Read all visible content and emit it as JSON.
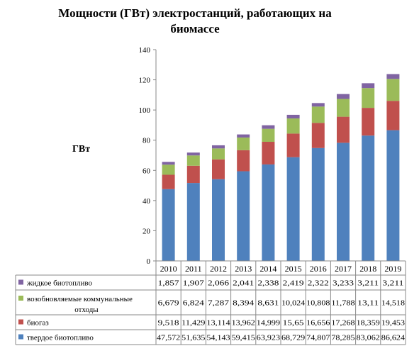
{
  "chart_data": {
    "type": "bar",
    "stacked": true,
    "title": "Мощности (ГВт) электростанций, работающих на биомассе",
    "ylabel": "ГВт",
    "xlabel": "",
    "ylim": [
      0,
      140
    ],
    "yticks": [
      "0",
      "20",
      "40",
      "60",
      "80",
      "100",
      "120",
      "140"
    ],
    "grid": false,
    "legend": "table-left",
    "categories": [
      "2010",
      "2011",
      "2012",
      "2013",
      "2014",
      "2015",
      "2016",
      "2017",
      "2018",
      "2019"
    ],
    "series": [
      {
        "name": "твердое биотопливо",
        "color": "#4F81BD",
        "values": [
          47.572,
          51.635,
          54.143,
          59.415,
          63.923,
          68.729,
          74.807,
          78.285,
          83.062,
          86.624
        ],
        "labels": [
          "47,572",
          "51,635",
          "54,143",
          "59,415",
          "63,923",
          "68,729",
          "74,807",
          "78,285",
          "83,062",
          "86,624"
        ]
      },
      {
        "name": "биогаз",
        "color": "#C0504D",
        "values": [
          9.518,
          11.429,
          13.114,
          13.962,
          14.999,
          15.65,
          16.656,
          17.268,
          18.359,
          19.453
        ],
        "labels": [
          "9,518",
          "11,429",
          "13,114",
          "13,962",
          "14,999",
          "15,65",
          "16,656",
          "17,268",
          "18,359",
          "19,453"
        ]
      },
      {
        "name": "возобновляемые коммунальные отходы",
        "color": "#9BBB59",
        "values": [
          6.679,
          6.824,
          7.287,
          8.394,
          8.631,
          10.024,
          10.808,
          11.788,
          13.11,
          14.518
        ],
        "labels": [
          "6,679",
          "6,824",
          "7,287",
          "8,394",
          "8,631",
          "10,024",
          "10,808",
          "11,788",
          "13,11",
          "14,518"
        ]
      },
      {
        "name": "жидкое биотопливо",
        "color": "#8064A2",
        "values": [
          1.857,
          1.907,
          2.066,
          2.041,
          2.338,
          2.419,
          2.322,
          3.233,
          3.211,
          3.211
        ],
        "labels": [
          "1,857",
          "1,907",
          "2,066",
          "2,041",
          "2,338",
          "2,419",
          "2,322",
          "3,233",
          "3,211",
          "3,211"
        ]
      }
    ],
    "table_row_order": [
      3,
      2,
      1,
      0
    ]
  }
}
